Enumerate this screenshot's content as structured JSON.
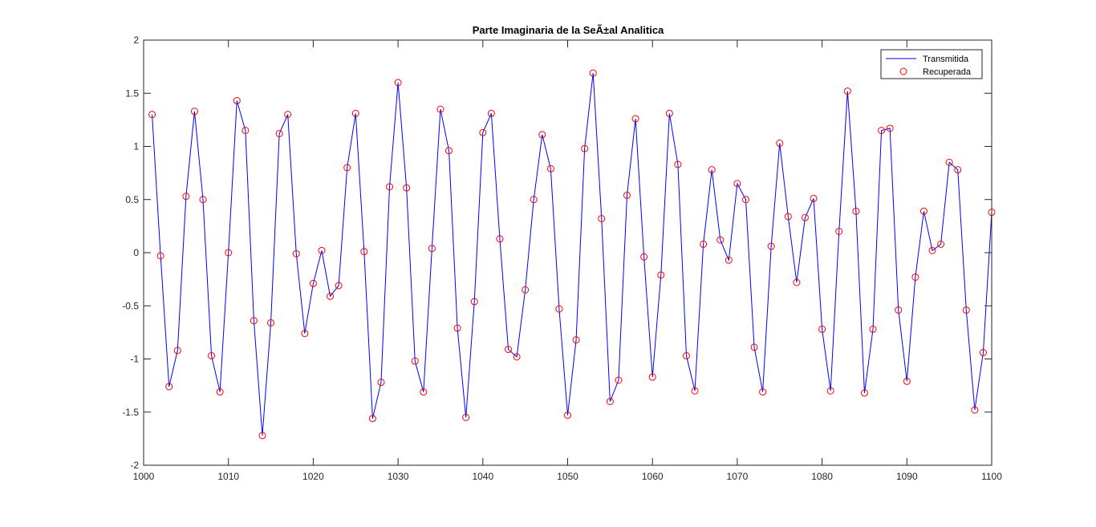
{
  "chart_data": {
    "type": "line",
    "title": "Parte Imaginaria de la SeÃ±al Analitica",
    "xlabel": "",
    "ylabel": "",
    "xlim": [
      1000,
      1100
    ],
    "ylim": [
      -2,
      2
    ],
    "xticks": [
      "1000",
      "1010",
      "1020",
      "1030",
      "1040",
      "1050",
      "1060",
      "1070",
      "1080",
      "1090",
      "1100"
    ],
    "yticks": [
      "-2",
      "-1.5",
      "-1",
      "-0.5",
      "0",
      "0.5",
      "1",
      "1.5",
      "2"
    ],
    "grid": false,
    "legend_position": "top-right",
    "x": [
      1001,
      1002,
      1003,
      1004,
      1005,
      1006,
      1007,
      1008,
      1009,
      1010,
      1011,
      1012,
      1013,
      1014,
      1015,
      1016,
      1017,
      1018,
      1019,
      1020,
      1021,
      1022,
      1023,
      1024,
      1025,
      1026,
      1027,
      1028,
      1029,
      1030,
      1031,
      1032,
      1033,
      1034,
      1035,
      1036,
      1037,
      1038,
      1039,
      1040,
      1041,
      1042,
      1043,
      1044,
      1045,
      1046,
      1047,
      1048,
      1049,
      1050,
      1051,
      1052,
      1053,
      1054,
      1055,
      1056,
      1057,
      1058,
      1059,
      1060,
      1061,
      1062,
      1063,
      1064,
      1065,
      1066,
      1067,
      1068,
      1069,
      1070,
      1071,
      1072,
      1073,
      1074,
      1075,
      1076,
      1077,
      1078,
      1079,
      1080,
      1081,
      1082,
      1083,
      1084,
      1085,
      1086,
      1087,
      1088,
      1089,
      1090,
      1091,
      1092,
      1093,
      1094,
      1095,
      1096,
      1097,
      1098,
      1099,
      1100
    ],
    "series": [
      {
        "name": "Transmitida",
        "style": "line",
        "color": "#0000ff",
        "values": [
          1.3,
          -0.03,
          -1.26,
          -0.92,
          0.53,
          1.33,
          0.5,
          -0.97,
          -1.31,
          0.0,
          1.43,
          1.15,
          -0.64,
          -1.72,
          -0.66,
          1.12,
          1.3,
          -0.01,
          -0.76,
          -0.29,
          0.02,
          -0.41,
          -0.31,
          0.8,
          1.31,
          0.01,
          -1.56,
          -1.22,
          0.62,
          1.6,
          0.61,
          -1.02,
          -1.31,
          0.04,
          1.35,
          0.96,
          -0.71,
          -1.55,
          -0.46,
          1.13,
          1.31,
          0.13,
          -0.91,
          -0.98,
          -0.35,
          0.5,
          1.11,
          0.79,
          -0.53,
          -1.53,
          -0.82,
          0.98,
          1.69,
          0.32,
          -1.4,
          -1.2,
          0.54,
          1.26,
          -0.04,
          -1.17,
          -0.21,
          1.31,
          0.83,
          -0.97,
          -1.3,
          0.08,
          0.78,
          0.12,
          -0.07,
          0.65,
          0.5,
          -0.89,
          -1.31,
          0.06,
          1.03,
          0.34,
          -0.28,
          0.33,
          0.51,
          -0.72,
          -1.3,
          0.2,
          1.52,
          0.39,
          -1.32,
          -0.72,
          1.15,
          1.17,
          -0.54,
          -1.21,
          -0.23,
          0.39,
          0.02,
          0.08,
          0.85,
          0.78,
          -0.54,
          -1.48,
          -0.94,
          0.38
        ]
      },
      {
        "name": "Recuperada",
        "style": "marker",
        "color": "#ff0000",
        "values": [
          1.3,
          -0.03,
          -1.26,
          -0.92,
          0.53,
          1.33,
          0.5,
          -0.97,
          -1.31,
          0.0,
          1.43,
          1.15,
          -0.64,
          -1.72,
          -0.66,
          1.12,
          1.3,
          -0.01,
          -0.76,
          -0.29,
          0.02,
          -0.41,
          -0.31,
          0.8,
          1.31,
          0.01,
          -1.56,
          -1.22,
          0.62,
          1.6,
          0.61,
          -1.02,
          -1.31,
          0.04,
          1.35,
          0.96,
          -0.71,
          -1.55,
          -0.46,
          1.13,
          1.31,
          0.13,
          -0.91,
          -0.98,
          -0.35,
          0.5,
          1.11,
          0.79,
          -0.53,
          -1.53,
          -0.82,
          0.98,
          1.69,
          0.32,
          -1.4,
          -1.2,
          0.54,
          1.26,
          -0.04,
          -1.17,
          -0.21,
          1.31,
          0.83,
          -0.97,
          -1.3,
          0.08,
          0.78,
          0.12,
          -0.07,
          0.65,
          0.5,
          -0.89,
          -1.31,
          0.06,
          1.03,
          0.34,
          -0.28,
          0.33,
          0.51,
          -0.72,
          -1.3,
          0.2,
          1.52,
          0.39,
          -1.32,
          -0.72,
          1.15,
          1.17,
          -0.54,
          -1.21,
          -0.23,
          0.39,
          0.02,
          0.08,
          0.85,
          0.78,
          -0.54,
          -1.48,
          -0.94,
          0.38
        ]
      }
    ]
  }
}
